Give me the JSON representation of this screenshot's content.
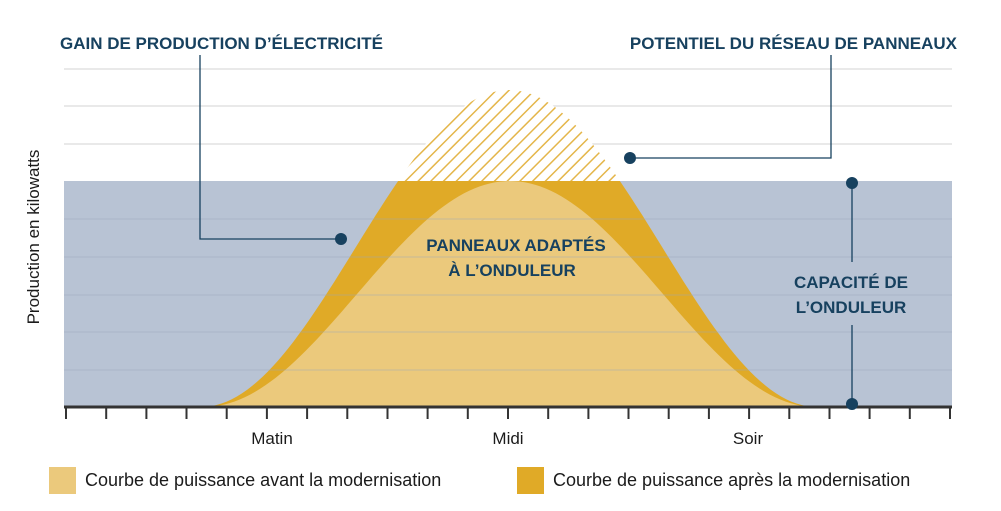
{
  "chart_data": {
    "type": "area",
    "ylabel": "Production en kilowatts",
    "xlabel": "",
    "x_ticks": [
      "Matin",
      "Midi",
      "Soir"
    ],
    "series": [
      {
        "name": "Courbe de puissance avant la modernisation",
        "color": "#ebc97c"
      },
      {
        "name": "Courbe de puissance après la modernisation",
        "color": "#e0aa27"
      }
    ],
    "inverter_capacity_fill": "#b8c3d4",
    "annotations": {
      "gain": "GAIN DE PRODUCTION D’ÉLECTRICITÉ",
      "potential": "POTENTIEL DU RÉSEAU DE PANNEAUX",
      "panels_line1": "PANNEAUX ADAPTÉS",
      "panels_line2": "À L’ONDULEUR",
      "capacity_line1": "CAPACITÉ DE",
      "capacity_line2": "L’ONDULEUR"
    },
    "annotation_color": "#17415f",
    "grid": true,
    "legend_position": "bottom"
  },
  "legend": {
    "before": "Courbe de puissance avant la modernisation",
    "after": "Courbe de puissance après la modernisation"
  }
}
